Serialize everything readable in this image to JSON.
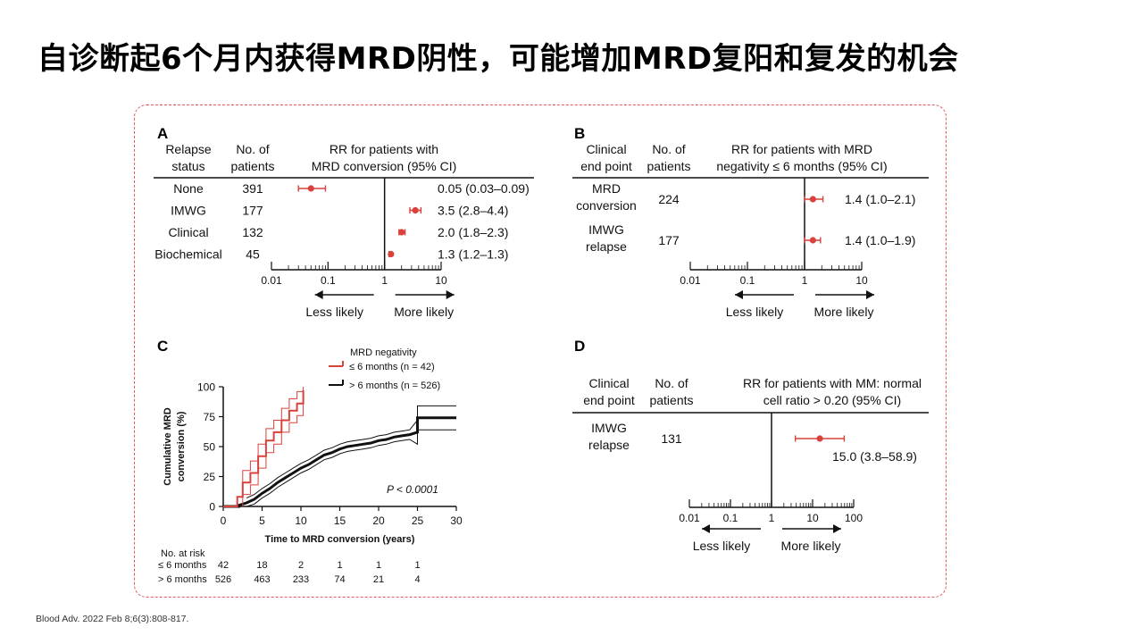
{
  "title": "自诊断起6个月内获得MRD阴性，可能增加MRD复阳和复发的机会",
  "citation": "Blood Adv. 2022 Feb 8;6(3):808-817.",
  "colors": {
    "accent": "#d9413b",
    "frame": "#e05a5a",
    "text": "#111111"
  },
  "chart_data": [
    {
      "panel": "A",
      "type": "forest",
      "headers": {
        "status": "Relapse status",
        "n": "No. of patients",
        "rr": "RR for patients with MRD conversion (95% CI)"
      },
      "header_lines": {
        "status": [
          "Relapse",
          "status"
        ],
        "n": [
          "No. of",
          "patients"
        ],
        "rr": [
          "RR for patients with",
          "MRD conversion (95% CI)"
        ]
      },
      "rows": [
        {
          "label": "None",
          "n": "391",
          "rr": 0.05,
          "lo": 0.03,
          "hi": 0.09,
          "text": "0.05 (0.03–0.09)"
        },
        {
          "label": "IMWG",
          "n": "177",
          "rr": 3.5,
          "lo": 2.8,
          "hi": 4.4,
          "text": "3.5 (2.8–4.4)"
        },
        {
          "label": "Clinical",
          "n": "132",
          "rr": 2.0,
          "lo": 1.8,
          "hi": 2.3,
          "text": "2.0 (1.8–2.3)"
        },
        {
          "label": "Biochemical",
          "n": "45",
          "rr": 1.3,
          "lo": 1.2,
          "hi": 1.3,
          "text": "1.3 (1.2–1.3)"
        }
      ],
      "axis": {
        "scale": "log",
        "range": [
          0.01,
          10
        ],
        "ticks": [
          "0.01",
          "0.1",
          "1",
          "10"
        ]
      },
      "direction_labels": [
        "Less likely",
        "More likely"
      ]
    },
    {
      "panel": "B",
      "type": "forest",
      "headers": {
        "status": "Clinical end point",
        "n": "No. of patients",
        "rr": "RR for patients with MRD negativity ≤ 6 months (95% CI)"
      },
      "header_lines": {
        "status": [
          "Clinical",
          "end point"
        ],
        "n": [
          "No. of",
          "patients"
        ],
        "rr": [
          "RR for patients with MRD",
          "negativity ≤ 6 months (95% CI)"
        ]
      },
      "rows": [
        {
          "label_lines": [
            "MRD",
            "conversion"
          ],
          "n": "224",
          "rr": 1.4,
          "lo": 1.0,
          "hi": 2.1,
          "text": "1.4 (1.0–2.1)"
        },
        {
          "label_lines": [
            "IMWG",
            "relapse"
          ],
          "n": "177",
          "rr": 1.4,
          "lo": 1.0,
          "hi": 1.9,
          "text": "1.4 (1.0–1.9)"
        }
      ],
      "axis": {
        "scale": "log",
        "range": [
          0.01,
          10
        ],
        "ticks": [
          "0.01",
          "0.1",
          "1",
          "10"
        ]
      },
      "direction_labels": [
        "Less likely",
        "More likely"
      ]
    },
    {
      "panel": "C",
      "type": "line",
      "ylabel": "Cumulative MRD conversion (%)",
      "xlabel": "Time to MRD conversion (years)",
      "xlim": [
        0,
        30
      ],
      "ylim": [
        0,
        100
      ],
      "xticks": [
        0,
        5,
        10,
        15,
        20,
        25,
        30
      ],
      "yticks": [
        0,
        25,
        50,
        75,
        100
      ],
      "legend_title": "MRD negativity",
      "pvalue": "P < 0.0001",
      "series": [
        {
          "name": "≤ 6 months (n = 42)",
          "color": "#d9413b",
          "points": [
            [
              0,
              0
            ],
            [
              1.8,
              0
            ],
            [
              1.8,
              8
            ],
            [
              2.5,
              8
            ],
            [
              2.5,
              20
            ],
            [
              3.5,
              20
            ],
            [
              3.5,
              28
            ],
            [
              4.5,
              28
            ],
            [
              4.5,
              42
            ],
            [
              5.5,
              42
            ],
            [
              5.5,
              55
            ],
            [
              6.5,
              55
            ],
            [
              6.5,
              62
            ],
            [
              7.5,
              62
            ],
            [
              7.5,
              72
            ],
            [
              8.5,
              72
            ],
            [
              8.5,
              80
            ],
            [
              9.5,
              80
            ],
            [
              9.5,
              86
            ],
            [
              10.3,
              86
            ],
            [
              10.3,
              97
            ]
          ]
        },
        {
          "name": "> 6 months (n = 526)",
          "color": "#111111",
          "points": [
            [
              0,
              0
            ],
            [
              2,
              0
            ],
            [
              2,
              1
            ],
            [
              3,
              3
            ],
            [
              4,
              6
            ],
            [
              5,
              11
            ],
            [
              6,
              15
            ],
            [
              7,
              20
            ],
            [
              8,
              24
            ],
            [
              9,
              28
            ],
            [
              10,
              32
            ],
            [
              11,
              35
            ],
            [
              12,
              39
            ],
            [
              13,
              43
            ],
            [
              14,
              45
            ],
            [
              15,
              48
            ],
            [
              16,
              50
            ],
            [
              17,
              51
            ],
            [
              18,
              52
            ],
            [
              19,
              53
            ],
            [
              20,
              55
            ],
            [
              21,
              56
            ],
            [
              22,
              58
            ],
            [
              23,
              59
            ],
            [
              24,
              60
            ],
            [
              25,
              62
            ],
            [
              25,
              74
            ],
            [
              30,
              74
            ]
          ]
        }
      ],
      "risk_table": {
        "title": "No. at risk",
        "x": [
          0,
          5,
          10,
          15,
          20,
          25
        ],
        "rows": [
          {
            "label": "≤ 6 months",
            "values": [
              "42",
              "18",
              "2",
              "1",
              "1",
              "1"
            ]
          },
          {
            "label": "> 6 months",
            "values": [
              "526",
              "463",
              "233",
              "74",
              "21",
              "4"
            ]
          }
        ]
      }
    },
    {
      "panel": "D",
      "type": "forest",
      "headers": {
        "status": "Clinical end point",
        "n": "No. of patients",
        "rr": "RR for patients with MM: normal cell ratio > 0.20 (95% CI)"
      },
      "header_lines": {
        "status": [
          "Clinical",
          "end point"
        ],
        "n": [
          "No. of",
          "patients"
        ],
        "rr": [
          "RR for patients with MM: normal",
          "cell ratio > 0.20 (95% CI)"
        ]
      },
      "rows": [
        {
          "label_lines": [
            "IMWG",
            "relapse"
          ],
          "n": "131",
          "rr": 15.0,
          "lo": 3.8,
          "hi": 58.9,
          "text": "15.0 (3.8–58.9)"
        }
      ],
      "axis": {
        "scale": "log",
        "range": [
          0.01,
          100
        ],
        "ticks": [
          "0.01",
          "0.1",
          "1",
          "10",
          "100"
        ]
      },
      "direction_labels": [
        "Less likely",
        "More likely"
      ]
    }
  ]
}
